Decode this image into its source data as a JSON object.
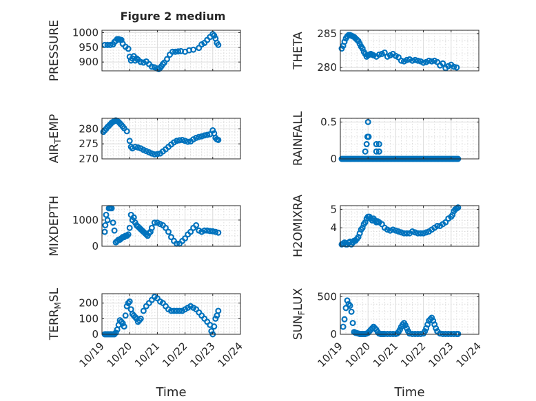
{
  "figure_title": "Figure 2 medium",
  "colors": {
    "marker": "#0072bd",
    "axis": "#262626",
    "grid": "#dcdcdc"
  },
  "chart_data": [
    {
      "type": "scatter",
      "id": "pressure",
      "ylabel": "PRESSURE",
      "xlim": [
        19,
        24
      ],
      "ylim": [
        870,
        1008
      ],
      "yticks": [
        900,
        950,
        1000
      ],
      "xticks": [
        19,
        20,
        21,
        22,
        23,
        24
      ],
      "show_xticks": false,
      "x": [
        19.1,
        19.2,
        19.3,
        19.4,
        19.45,
        19.5,
        19.55,
        19.6,
        19.65,
        19.7,
        19.75,
        19.85,
        19.95,
        20.0,
        20.05,
        20.1,
        20.15,
        20.2,
        20.25,
        20.3,
        20.4,
        20.5,
        20.6,
        20.7,
        20.8,
        20.9,
        21.0,
        21.05,
        21.1,
        21.15,
        21.2,
        21.25,
        21.35,
        21.45,
        21.55,
        21.65,
        21.75,
        21.85,
        22.0,
        22.15,
        22.3,
        22.5,
        22.6,
        22.7,
        22.8,
        22.9,
        23.0,
        23.05,
        23.1,
        23.15,
        23.2
      ],
      "y": [
        958,
        958,
        958,
        960,
        968,
        972,
        978,
        978,
        976,
        975,
        962,
        952,
        945,
        918,
        905,
        912,
        920,
        905,
        912,
        908,
        900,
        898,
        902,
        893,
        884,
        882,
        878,
        876,
        880,
        886,
        893,
        898,
        910,
        925,
        935,
        935,
        936,
        937,
        935,
        940,
        942,
        948,
        960,
        965,
        975,
        985,
        995,
        990,
        980,
        965,
        958
      ]
    },
    {
      "type": "scatter",
      "id": "theta",
      "ylabel": "THETA",
      "xlim": [
        19,
        24
      ],
      "ylim": [
        279.5,
        285.5
      ],
      "yticks": [
        280,
        285
      ],
      "xticks": [
        19,
        20,
        21,
        22,
        23,
        24
      ],
      "show_xticks": false,
      "x": [
        19.05,
        19.1,
        19.15,
        19.2,
        19.25,
        19.3,
        19.35,
        19.4,
        19.45,
        19.5,
        19.55,
        19.6,
        19.65,
        19.7,
        19.75,
        19.8,
        19.85,
        19.9,
        19.95,
        20.0,
        20.05,
        20.1,
        20.15,
        20.2,
        20.3,
        20.4,
        20.5,
        20.6,
        20.7,
        20.8,
        20.9,
        21.0,
        21.1,
        21.2,
        21.3,
        21.4,
        21.5,
        21.6,
        21.7,
        21.8,
        21.9,
        22.0,
        22.1,
        22.2,
        22.3,
        22.4,
        22.5,
        22.6,
        22.7,
        22.8,
        22.9,
        23.0,
        23.1,
        23.2
      ],
      "y": [
        282.8,
        283.2,
        283.8,
        284.3,
        284.6,
        284.8,
        284.8,
        284.7,
        284.6,
        284.5,
        284.3,
        284.1,
        283.9,
        283.5,
        283.1,
        282.8,
        282.3,
        282.0,
        281.6,
        281.8,
        281.9,
        282.0,
        281.9,
        281.8,
        281.6,
        281.9,
        282.0,
        282.2,
        281.6,
        281.8,
        282.0,
        281.7,
        281.5,
        281.0,
        280.9,
        281.1,
        281.2,
        281.0,
        281.1,
        281.0,
        280.9,
        280.7,
        280.8,
        281.0,
        280.9,
        281.0,
        280.8,
        280.3,
        280.6,
        279.9,
        280.2,
        280.4,
        280.1,
        280.0
      ]
    },
    {
      "type": "scatter",
      "id": "air_temp",
      "ylabel": "AIR_TEMP",
      "ylabel_main": "AIR",
      "ylabel_sub": "T",
      "ylabel_rest": "EMP",
      "xlim": [
        19,
        24
      ],
      "ylim": [
        270,
        283.5
      ],
      "yticks": [
        270,
        275,
        280
      ],
      "xticks": [
        19,
        20,
        21,
        22,
        23,
        24
      ],
      "show_xticks": false,
      "x": [
        19.05,
        19.1,
        19.15,
        19.2,
        19.25,
        19.3,
        19.35,
        19.4,
        19.45,
        19.5,
        19.55,
        19.6,
        19.65,
        19.7,
        19.75,
        19.8,
        19.9,
        20.0,
        20.05,
        20.1,
        20.2,
        20.3,
        20.4,
        20.5,
        20.6,
        20.7,
        20.8,
        20.9,
        21.0,
        21.1,
        21.2,
        21.3,
        21.4,
        21.5,
        21.6,
        21.7,
        21.8,
        21.9,
        22.0,
        22.1,
        22.2,
        22.3,
        22.4,
        22.5,
        22.6,
        22.7,
        22.8,
        22.9,
        23.0,
        23.05,
        23.1,
        23.15,
        23.2
      ],
      "y": [
        279.0,
        279.5,
        280.0,
        280.6,
        281.0,
        281.5,
        282.0,
        282.3,
        282.6,
        282.8,
        282.6,
        282.3,
        281.8,
        281.3,
        280.8,
        280.2,
        279.2,
        276.0,
        274.0,
        273.5,
        274.0,
        273.8,
        273.5,
        273.0,
        272.6,
        272.2,
        271.8,
        271.5,
        271.6,
        271.8,
        272.5,
        273.2,
        274.0,
        274.8,
        275.5,
        276.0,
        276.2,
        276.3,
        276.0,
        275.7,
        275.8,
        276.5,
        277.0,
        277.3,
        277.5,
        277.8,
        278.0,
        278.2,
        279.5,
        278.5,
        277.0,
        276.5,
        276.3
      ]
    },
    {
      "type": "scatter",
      "id": "rainfall",
      "ylabel": "RAINFALL",
      "xlim": [
        19,
        24
      ],
      "ylim": [
        0,
        0.55
      ],
      "yticks": [
        0,
        0.5
      ],
      "ytick_labels": [
        "0",
        "0.5"
      ],
      "xticks": [
        19,
        20,
        21,
        22,
        23,
        24
      ],
      "show_xticks": false,
      "x": [
        19.05,
        19.1,
        19.15,
        19.2,
        19.25,
        19.3,
        19.35,
        19.4,
        19.45,
        19.5,
        19.55,
        19.6,
        19.65,
        19.7,
        19.75,
        19.8,
        19.85,
        19.9,
        19.95,
        20.0,
        20.05,
        20.1,
        20.15,
        20.2,
        20.25,
        20.3,
        20.35,
        20.4,
        20.45,
        20.5,
        20.55,
        20.6,
        20.65,
        20.7,
        20.75,
        20.8,
        20.85,
        20.9,
        20.95,
        21.0,
        21.05,
        21.1,
        21.15,
        21.2,
        21.25,
        21.3,
        21.35,
        21.4,
        21.45,
        21.5,
        21.55,
        21.6,
        21.65,
        21.7,
        21.75,
        21.8,
        21.85,
        21.9,
        21.95,
        22.0,
        22.05,
        22.1,
        22.15,
        22.2,
        22.25,
        22.3,
        22.35,
        22.4,
        22.45,
        22.5,
        22.55,
        22.6,
        22.65,
        22.7,
        22.75,
        22.8,
        22.85,
        22.9,
        22.95,
        23.0,
        23.05,
        23.1,
        23.15,
        23.2,
        23.25,
        19.9,
        19.95,
        19.98,
        20.0,
        20.02,
        20.3,
        20.4,
        20.3,
        20.4
      ],
      "y": [
        0,
        0,
        0,
        0,
        0,
        0,
        0,
        0,
        0,
        0,
        0,
        0,
        0,
        0,
        0,
        0,
        0,
        0,
        0,
        0,
        0,
        0,
        0,
        0,
        0,
        0,
        0,
        0,
        0,
        0,
        0,
        0,
        0,
        0,
        0,
        0,
        0,
        0,
        0,
        0,
        0,
        0,
        0,
        0,
        0,
        0,
        0,
        0,
        0,
        0,
        0,
        0,
        0,
        0,
        0,
        0,
        0,
        0,
        0,
        0,
        0,
        0,
        0,
        0,
        0,
        0,
        0,
        0,
        0,
        0,
        0,
        0,
        0,
        0,
        0,
        0,
        0,
        0,
        0,
        0,
        0,
        0,
        0,
        0,
        0,
        0.1,
        0.2,
        0.3,
        0.5,
        0.3,
        0.2,
        0.2,
        0.1,
        0.1
      ]
    },
    {
      "type": "scatter",
      "id": "mixdepth",
      "ylabel": "MIXDEPTH",
      "xlim": [
        19,
        24
      ],
      "ylim": [
        0,
        1550
      ],
      "yticks": [
        0,
        1000
      ],
      "xticks": [
        19,
        20,
        21,
        22,
        23,
        24
      ],
      "show_xticks": false,
      "x": [
        19.1,
        19.12,
        19.15,
        19.2,
        19.25,
        19.3,
        19.35,
        19.4,
        19.45,
        19.5,
        19.55,
        19.6,
        19.65,
        19.7,
        19.75,
        19.8,
        19.85,
        19.9,
        19.95,
        20.0,
        20.05,
        20.1,
        20.15,
        20.2,
        20.25,
        20.3,
        20.35,
        20.4,
        20.45,
        20.5,
        20.55,
        20.6,
        20.65,
        20.7,
        20.75,
        20.8,
        20.9,
        21.0,
        21.1,
        21.2,
        21.3,
        21.4,
        21.5,
        21.6,
        21.7,
        21.8,
        21.9,
        22.0,
        22.1,
        22.2,
        22.3,
        22.4,
        22.5,
        22.6,
        22.7,
        22.8,
        22.9,
        23.0,
        23.1,
        23.2
      ],
      "y": [
        550,
        800,
        1200,
        1000,
        1450,
        1450,
        1450,
        900,
        600,
        150,
        200,
        250,
        250,
        300,
        350,
        350,
        400,
        400,
        450,
        700,
        1200,
        1000,
        1100,
        900,
        800,
        750,
        700,
        650,
        600,
        550,
        500,
        450,
        400,
        500,
        550,
        700,
        900,
        900,
        850,
        800,
        700,
        550,
        350,
        200,
        100,
        100,
        200,
        300,
        450,
        550,
        700,
        800,
        600,
        550,
        600,
        600,
        580,
        570,
        550,
        520
      ]
    },
    {
      "type": "scatter",
      "id": "h2omixra",
      "ylabel": "H2OMIXRA",
      "xlim": [
        19,
        24
      ],
      "ylim": [
        3.0,
        5.2
      ],
      "yticks": [
        4,
        5
      ],
      "xticks": [
        19,
        20,
        21,
        22,
        23,
        24
      ],
      "show_xticks": false,
      "x": [
        19.05,
        19.1,
        19.15,
        19.2,
        19.25,
        19.3,
        19.35,
        19.4,
        19.45,
        19.5,
        19.55,
        19.6,
        19.65,
        19.7,
        19.75,
        19.8,
        19.85,
        19.9,
        19.95,
        20.0,
        20.05,
        20.1,
        20.15,
        20.2,
        20.25,
        20.3,
        20.35,
        20.4,
        20.5,
        20.6,
        20.7,
        20.8,
        20.9,
        21.0,
        21.1,
        21.2,
        21.3,
        21.4,
        21.5,
        21.6,
        21.7,
        21.8,
        21.9,
        22.0,
        22.1,
        22.2,
        22.3,
        22.4,
        22.5,
        22.6,
        22.7,
        22.8,
        22.9,
        23.0,
        23.05,
        23.1,
        23.15,
        23.2,
        23.25
      ],
      "y": [
        3.1,
        3.15,
        3.2,
        3.1,
        3.1,
        3.2,
        3.25,
        3.1,
        3.2,
        3.3,
        3.3,
        3.4,
        3.5,
        3.7,
        3.9,
        4.0,
        4.2,
        4.3,
        4.5,
        4.6,
        4.6,
        4.5,
        4.4,
        4.5,
        4.4,
        4.3,
        4.35,
        4.3,
        4.2,
        4.0,
        3.9,
        3.85,
        3.9,
        3.85,
        3.8,
        3.75,
        3.7,
        3.7,
        3.7,
        3.8,
        3.75,
        3.7,
        3.7,
        3.7,
        3.75,
        3.8,
        3.9,
        4.0,
        4.1,
        4.1,
        4.2,
        4.3,
        4.5,
        4.6,
        4.7,
        4.9,
        5.0,
        5.05,
        5.1
      ]
    },
    {
      "type": "scatter",
      "id": "terr_msl",
      "ylabel": "TERR_MSL",
      "ylabel_main": "TERR",
      "ylabel_sub": "M",
      "ylabel_rest": "SL",
      "xlim": [
        19,
        24
      ],
      "ylim": [
        0,
        260
      ],
      "yticks": [
        0,
        100,
        200
      ],
      "xticks": [
        19,
        20,
        21,
        22,
        23,
        24
      ],
      "xtick_labels": [
        "10/19",
        "10/20",
        "10/21",
        "10/22",
        "10/23",
        "10/24"
      ],
      "show_xticks": true,
      "xlabel": "Time",
      "x": [
        19.1,
        19.15,
        19.2,
        19.25,
        19.3,
        19.35,
        19.4,
        19.45,
        19.5,
        19.55,
        19.6,
        19.65,
        19.7,
        19.75,
        19.8,
        19.85,
        19.9,
        19.95,
        20.0,
        20.05,
        20.1,
        20.15,
        20.2,
        20.25,
        20.3,
        20.35,
        20.4,
        20.5,
        20.6,
        20.7,
        20.8,
        20.9,
        21.0,
        21.1,
        21.2,
        21.3,
        21.4,
        21.5,
        21.6,
        21.7,
        21.8,
        21.9,
        22.0,
        22.1,
        22.2,
        22.3,
        22.4,
        22.5,
        22.6,
        22.7,
        22.8,
        22.9,
        22.95,
        23.0,
        23.05,
        23.1,
        23.15,
        23.2
      ],
      "y": [
        0,
        0,
        0,
        0,
        0,
        0,
        0,
        0,
        10,
        30,
        60,
        90,
        80,
        70,
        50,
        120,
        180,
        200,
        210,
        160,
        130,
        120,
        110,
        100,
        80,
        90,
        100,
        150,
        180,
        200,
        220,
        240,
        230,
        210,
        200,
        180,
        160,
        150,
        150,
        150,
        150,
        150,
        160,
        170,
        180,
        170,
        160,
        140,
        120,
        100,
        80,
        60,
        20,
        0,
        50,
        100,
        120,
        150
      ]
    },
    {
      "type": "scatter",
      "id": "sun_flux",
      "ylabel": "SUN_FLUX",
      "ylabel_main": "SUN",
      "ylabel_sub": "F",
      "ylabel_rest": "LUX",
      "xlim": [
        19,
        24
      ],
      "ylim": [
        0,
        540
      ],
      "yticks": [
        0,
        500
      ],
      "xticks": [
        19,
        20,
        21,
        22,
        23,
        24
      ],
      "xtick_labels": [
        "10/19",
        "10/20",
        "10/21",
        "10/22",
        "10/23",
        "10/24"
      ],
      "show_xticks": true,
      "xlabel": "Time",
      "x": [
        19.1,
        19.15,
        19.2,
        19.25,
        19.3,
        19.35,
        19.4,
        19.45,
        19.5,
        19.55,
        19.6,
        19.65,
        19.7,
        19.75,
        19.8,
        19.85,
        19.9,
        19.95,
        20.0,
        20.05,
        20.1,
        20.15,
        20.2,
        20.25,
        20.3,
        20.35,
        20.4,
        20.45,
        20.5,
        20.55,
        20.6,
        20.7,
        20.8,
        20.9,
        21.0,
        21.05,
        21.1,
        21.15,
        21.2,
        21.25,
        21.3,
        21.35,
        21.4,
        21.45,
        21.5,
        21.6,
        21.7,
        21.8,
        21.9,
        22.0,
        22.05,
        22.1,
        22.15,
        22.2,
        22.25,
        22.3,
        22.35,
        22.4,
        22.45,
        22.5,
        22.6,
        22.7,
        22.8,
        22.9,
        23.0,
        23.1,
        23.2,
        23.25
      ],
      "y": [
        100,
        200,
        350,
        450,
        400,
        380,
        300,
        150,
        30,
        20,
        15,
        10,
        5,
        5,
        5,
        5,
        5,
        10,
        20,
        40,
        60,
        80,
        100,
        80,
        60,
        30,
        10,
        5,
        5,
        5,
        5,
        5,
        5,
        5,
        5,
        10,
        30,
        60,
        100,
        130,
        150,
        120,
        80,
        40,
        10,
        5,
        5,
        5,
        5,
        10,
        40,
        80,
        130,
        180,
        200,
        220,
        180,
        130,
        80,
        40,
        10,
        5,
        5,
        5,
        5,
        5,
        5,
        5
      ]
    }
  ]
}
